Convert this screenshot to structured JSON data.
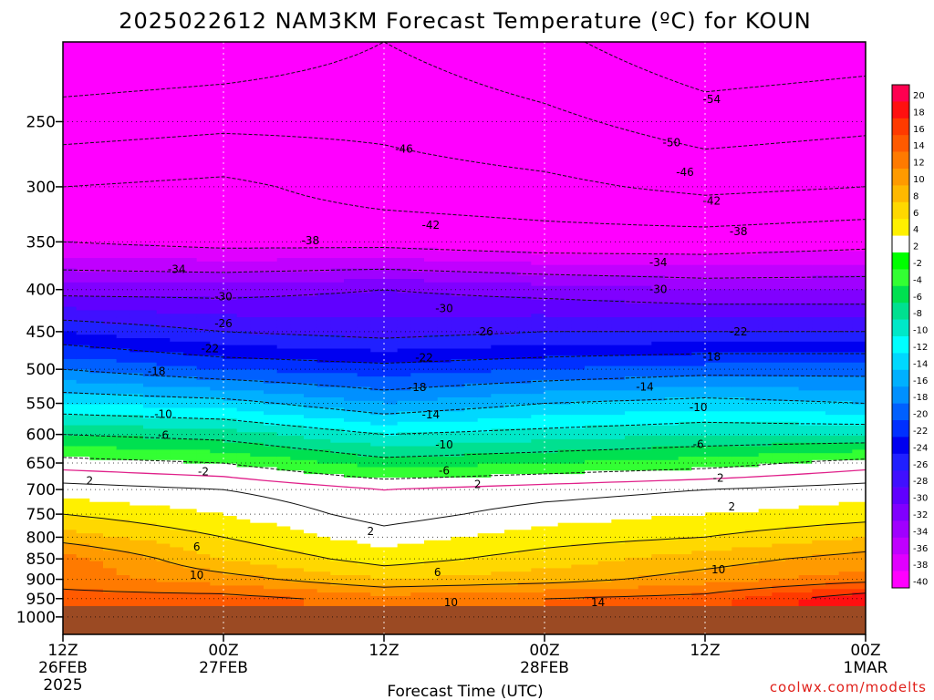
{
  "chart_data": {
    "type": "heatmap",
    "title": "2025022612 NAM3KM Forecast Temperature (ºC) for KOUN",
    "xlabel": "Forecast Time (UTC)",
    "ylabel": "",
    "x_ticks": [
      {
        "label": "12Z",
        "label2": "26FEB",
        "label3": "2025",
        "hours": 0
      },
      {
        "label": "00Z",
        "label2": "27FEB",
        "label3": "",
        "hours": 12
      },
      {
        "label": "12Z",
        "label2": "",
        "label3": "",
        "hours": 24
      },
      {
        "label": "00Z",
        "label2": "28FEB",
        "label3": "",
        "hours": 36
      },
      {
        "label": "12Z",
        "label2": "",
        "label3": "",
        "hours": 48
      },
      {
        "label": "00Z",
        "label2": "1MAR",
        "label3": "",
        "hours": 60
      }
    ],
    "xlim_hours": [
      0,
      60
    ],
    "y_ticks": [
      250,
      300,
      350,
      400,
      450,
      500,
      550,
      600,
      650,
      700,
      750,
      800,
      850,
      900,
      950,
      1000
    ],
    "ylim_hpa": [
      200,
      1050
    ],
    "y_scale": "log",
    "surface_pressure_hpa": 970,
    "colorbar": {
      "labels": [
        "20",
        "18",
        "16",
        "14",
        "12",
        "10",
        "8",
        "6",
        "4",
        "2",
        "-2",
        "-4",
        "-6",
        "-8",
        "-10",
        "-12",
        "-14",
        "-16",
        "-18",
        "-20",
        "-22",
        "-24",
        "-26",
        "-28",
        "-30",
        "-32",
        "-34",
        "-36",
        "-38",
        "-40"
      ],
      "colors": [
        "#ff0050",
        "#ff1010",
        "#ff3a00",
        "#ff5a00",
        "#ff7a00",
        "#ff9a00",
        "#ffb800",
        "#ffd800",
        "#fff000",
        "#ffffff",
        "#00ff00",
        "#33ff33",
        "#00e050",
        "#00e090",
        "#00e8c8",
        "#00ffff",
        "#00d8ff",
        "#00b0ff",
        "#0090ff",
        "#0060ff",
        "#0030ff",
        "#0000f0",
        "#2020ff",
        "#4010ff",
        "#6000ff",
        "#8000ff",
        "#a000ff",
        "#c000ff",
        "#e000ff",
        "#ff00ff"
      ]
    },
    "levels_hpa": [
      250,
      300,
      350,
      400,
      450,
      500,
      550,
      600,
      650,
      700,
      750,
      800,
      850,
      900,
      950
    ],
    "series": [
      {
        "pressure_hpa": 250,
        "hours": [
          0,
          12,
          24,
          36,
          48,
          60
        ],
        "temperature_c": [
          -48,
          -47,
          -47,
          -49,
          -52,
          -51
        ]
      },
      {
        "pressure_hpa": 300,
        "hours": [
          0,
          12,
          24,
          36,
          48,
          60
        ],
        "temperature_c": [
          -42,
          -41,
          -44,
          -45,
          -47,
          -46
        ]
      },
      {
        "pressure_hpa": 350,
        "hours": [
          0,
          12,
          24,
          36,
          48,
          60
        ],
        "temperature_c": [
          -38,
          -39,
          -39,
          -40,
          -40,
          -39
        ]
      },
      {
        "pressure_hpa": 400,
        "hours": [
          0,
          12,
          24,
          36,
          48,
          60
        ],
        "temperature_c": [
          -31,
          -31,
          -30,
          -31,
          -32,
          -32
        ]
      },
      {
        "pressure_hpa": 450,
        "hours": [
          0,
          12,
          24,
          36,
          48,
          60
        ],
        "temperature_c": [
          -24,
          -26,
          -27,
          -26,
          -26,
          -26
        ]
      },
      {
        "pressure_hpa": 500,
        "hours": [
          0,
          12,
          24,
          36,
          48,
          60
        ],
        "temperature_c": [
          -18,
          -20,
          -21,
          -20,
          -19,
          -19
        ]
      },
      {
        "pressure_hpa": 550,
        "hours": [
          0,
          12,
          24,
          36,
          48,
          60
        ],
        "temperature_c": [
          -12,
          -13,
          -16,
          -14,
          -13,
          -14
        ]
      },
      {
        "pressure_hpa": 600,
        "hours": [
          0,
          12,
          24,
          36,
          48,
          60
        ],
        "temperature_c": [
          -6,
          -7,
          -10,
          -9,
          -8,
          -8
        ]
      },
      {
        "pressure_hpa": 650,
        "hours": [
          0,
          12,
          24,
          36,
          48,
          60
        ],
        "temperature_c": [
          -1,
          -2,
          -5,
          -4,
          -3,
          -1
        ]
      },
      {
        "pressure_hpa": 700,
        "hours": [
          0,
          12,
          24,
          36,
          48,
          60
        ],
        "temperature_c": [
          3,
          2,
          0,
          1,
          2,
          3
        ]
      },
      {
        "pressure_hpa": 750,
        "hours": [
          0,
          12,
          24,
          36,
          48,
          60
        ],
        "temperature_c": [
          6,
          4,
          1,
          3,
          4,
          5
        ]
      },
      {
        "pressure_hpa": 800,
        "hours": [
          0,
          12,
          24,
          36,
          48,
          60
        ],
        "temperature_c": [
          9,
          6,
          3,
          5,
          6,
          8
        ]
      },
      {
        "pressure_hpa": 850,
        "hours": [
          0,
          12,
          24,
          36,
          48,
          60
        ],
        "temperature_c": [
          13,
          8,
          5,
          7,
          9,
          11
        ]
      },
      {
        "pressure_hpa": 900,
        "hours": [
          0,
          12,
          24,
          36,
          48,
          60
        ],
        "temperature_c": [
          13,
          11,
          8,
          9,
          11,
          13
        ]
      },
      {
        "pressure_hpa": 950,
        "hours": [
          0,
          12,
          24,
          36,
          48,
          60
        ],
        "temperature_c": [
          15,
          15,
          13,
          14,
          15,
          20
        ]
      }
    ],
    "contour_labels": [
      {
        "text": "-54",
        "hours": 48.5,
        "pressure_hpa": 235
      },
      {
        "text": "-46",
        "hours": 25.5,
        "pressure_hpa": 270
      },
      {
        "text": "-50",
        "hours": 45.5,
        "pressure_hpa": 265
      },
      {
        "text": "-46",
        "hours": 46.5,
        "pressure_hpa": 288
      },
      {
        "text": "-42",
        "hours": 48.5,
        "pressure_hpa": 312
      },
      {
        "text": "-42",
        "hours": 27.5,
        "pressure_hpa": 334
      },
      {
        "text": "-38",
        "hours": 50.5,
        "pressure_hpa": 340
      },
      {
        "text": "-38",
        "hours": 18.5,
        "pressure_hpa": 349
      },
      {
        "text": "-34",
        "hours": 8.5,
        "pressure_hpa": 378
      },
      {
        "text": "-34",
        "hours": 44.5,
        "pressure_hpa": 371
      },
      {
        "text": "-30",
        "hours": 12.0,
        "pressure_hpa": 408
      },
      {
        "text": "-30",
        "hours": 28.5,
        "pressure_hpa": 422
      },
      {
        "text": "-30",
        "hours": 44.5,
        "pressure_hpa": 400
      },
      {
        "text": "-26",
        "hours": 12.0,
        "pressure_hpa": 440
      },
      {
        "text": "-26",
        "hours": 31.5,
        "pressure_hpa": 450
      },
      {
        "text": "-22",
        "hours": 50.5,
        "pressure_hpa": 450
      },
      {
        "text": "-22",
        "hours": 11.0,
        "pressure_hpa": 472
      },
      {
        "text": "-22",
        "hours": 27.0,
        "pressure_hpa": 484
      },
      {
        "text": "-18",
        "hours": 48.5,
        "pressure_hpa": 483
      },
      {
        "text": "-18",
        "hours": 7.0,
        "pressure_hpa": 503
      },
      {
        "text": "-18",
        "hours": 26.5,
        "pressure_hpa": 526
      },
      {
        "text": "-14",
        "hours": 43.5,
        "pressure_hpa": 525
      },
      {
        "text": "-10",
        "hours": 7.5,
        "pressure_hpa": 567
      },
      {
        "text": "-14",
        "hours": 27.5,
        "pressure_hpa": 568
      },
      {
        "text": "-10",
        "hours": 47.5,
        "pressure_hpa": 556
      },
      {
        "text": "-6",
        "hours": 7.5,
        "pressure_hpa": 601
      },
      {
        "text": "-10",
        "hours": 28.5,
        "pressure_hpa": 618
      },
      {
        "text": "-6",
        "hours": 47.5,
        "pressure_hpa": 617
      },
      {
        "text": "-2",
        "hours": 10.5,
        "pressure_hpa": 666
      },
      {
        "text": "-6",
        "hours": 28.5,
        "pressure_hpa": 664
      },
      {
        "text": "-2",
        "hours": 49.0,
        "pressure_hpa": 678
      },
      {
        "text": "2",
        "hours": 2.0,
        "pressure_hpa": 683
      },
      {
        "text": "2",
        "hours": 31.0,
        "pressure_hpa": 690
      },
      {
        "text": "2",
        "hours": 50.0,
        "pressure_hpa": 735
      },
      {
        "text": "2",
        "hours": 23.0,
        "pressure_hpa": 787
      },
      {
        "text": "6",
        "hours": 10.0,
        "pressure_hpa": 822
      },
      {
        "text": "6",
        "hours": 28.0,
        "pressure_hpa": 883
      },
      {
        "text": "10",
        "hours": 10.0,
        "pressure_hpa": 890
      },
      {
        "text": "10",
        "hours": 49.0,
        "pressure_hpa": 876
      },
      {
        "text": "10",
        "hours": 29.0,
        "pressure_hpa": 960
      },
      {
        "text": "14",
        "hours": 40.0,
        "pressure_hpa": 960
      }
    ],
    "credit": "coolwx.com/modelts",
    "grid": true
  }
}
